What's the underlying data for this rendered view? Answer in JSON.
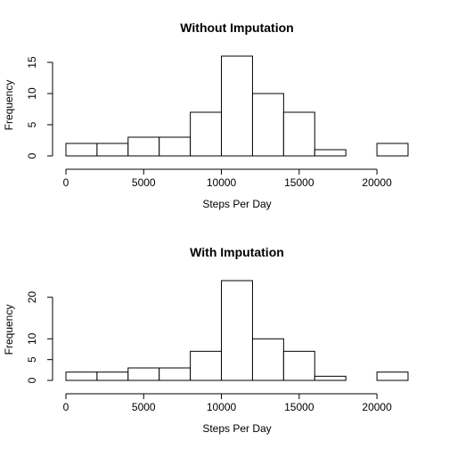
{
  "chart_data": [
    {
      "type": "bar",
      "title": "Without Imputation",
      "xlabel": "Steps Per Day",
      "ylabel": "Frequency",
      "bin_edges": [
        0,
        2000,
        4000,
        6000,
        8000,
        10000,
        12000,
        14000,
        16000,
        18000,
        20000,
        22000
      ],
      "values": [
        2,
        2,
        3,
        3,
        7,
        16,
        10,
        7,
        1,
        0,
        2
      ],
      "xticks": [
        0,
        5000,
        10000,
        15000,
        20000
      ],
      "xtick_labels": [
        "0",
        "5000",
        "10000",
        "15000",
        "20000"
      ],
      "yticks": [
        0,
        5,
        10,
        15
      ],
      "ytick_labels": [
        "0",
        "5",
        "10",
        "15"
      ],
      "xlim": [
        0,
        22000
      ],
      "ylim": [
        0,
        16
      ],
      "grid": false
    },
    {
      "type": "bar",
      "title": "With Imputation",
      "xlabel": "Steps Per Day",
      "ylabel": "Frequency",
      "bin_edges": [
        0,
        2000,
        4000,
        6000,
        8000,
        10000,
        12000,
        14000,
        16000,
        18000,
        20000,
        22000
      ],
      "values": [
        2,
        2,
        3,
        3,
        7,
        24,
        10,
        7,
        1,
        0,
        2
      ],
      "xticks": [
        0,
        5000,
        10000,
        15000,
        20000
      ],
      "xtick_labels": [
        "0",
        "5000",
        "10000",
        "15000",
        "20000"
      ],
      "yticks": [
        0,
        5,
        10,
        20
      ],
      "ytick_labels": [
        "0",
        "5",
        "10",
        "20"
      ],
      "xlim": [
        0,
        22000
      ],
      "ylim": [
        0,
        24
      ],
      "grid": false
    }
  ]
}
